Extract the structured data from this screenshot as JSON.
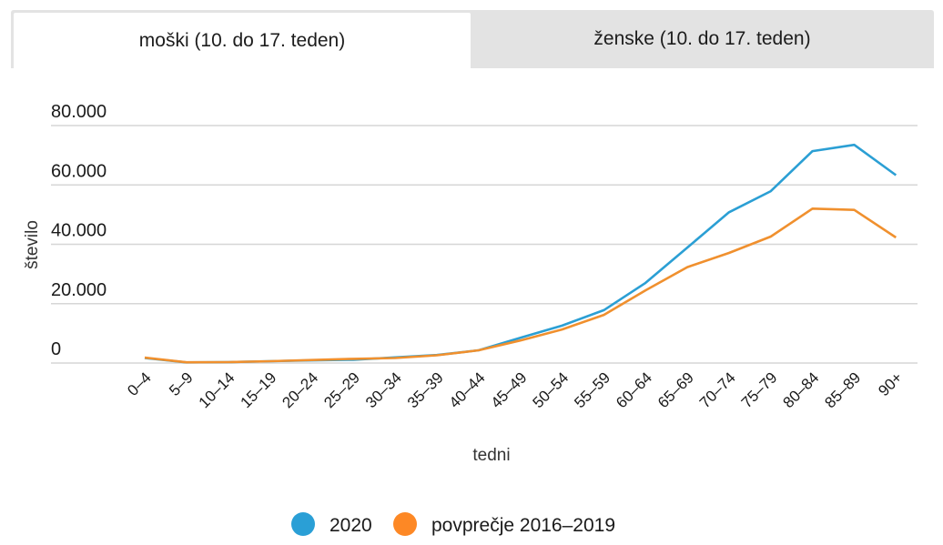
{
  "tabs": [
    {
      "label": "moški (10. do 17. teden)",
      "active": true
    },
    {
      "label": "ženske (10. do 17. teden)",
      "active": false
    }
  ],
  "colors": {
    "series_2020": "#2b9fd4",
    "series_avg": "#f0902e",
    "legend_2020": "#2a9fd6",
    "legend_avg": "#fd8825",
    "grid": "#d6d6d6"
  },
  "chart_data": {
    "type": "line",
    "title": "",
    "xlabel": "tedni",
    "ylabel": "število",
    "ylim": [
      0,
      80000
    ],
    "yticks": [
      0,
      20000,
      40000,
      60000,
      80000
    ],
    "ytick_labels": [
      "0",
      "20.000",
      "40.000",
      "60.000",
      "80.000"
    ],
    "grid": true,
    "legend_position": "bottom",
    "categories": [
      "0–4",
      "5–9",
      "10–14",
      "15–19",
      "20–24",
      "25–29",
      "30–34",
      "35–39",
      "40–44",
      "45–49",
      "50–54",
      "55–59",
      "60–64",
      "65–69",
      "70–74",
      "75–79",
      "80–84",
      "85–89",
      "90+"
    ],
    "series": [
      {
        "name": "2020",
        "values": [
          1700,
          200,
          300,
          600,
          900,
          1100,
          1900,
          2700,
          4300,
          8500,
          12600,
          17800,
          27000,
          38900,
          50800,
          57900,
          71400,
          73500,
          63300
        ]
      },
      {
        "name": "povprečje 2016–2019",
        "values": [
          1800,
          250,
          300,
          600,
          1000,
          1400,
          1700,
          2600,
          4300,
          7600,
          11300,
          16200,
          24500,
          32300,
          37100,
          42600,
          52000,
          51600,
          42300
        ]
      }
    ]
  }
}
